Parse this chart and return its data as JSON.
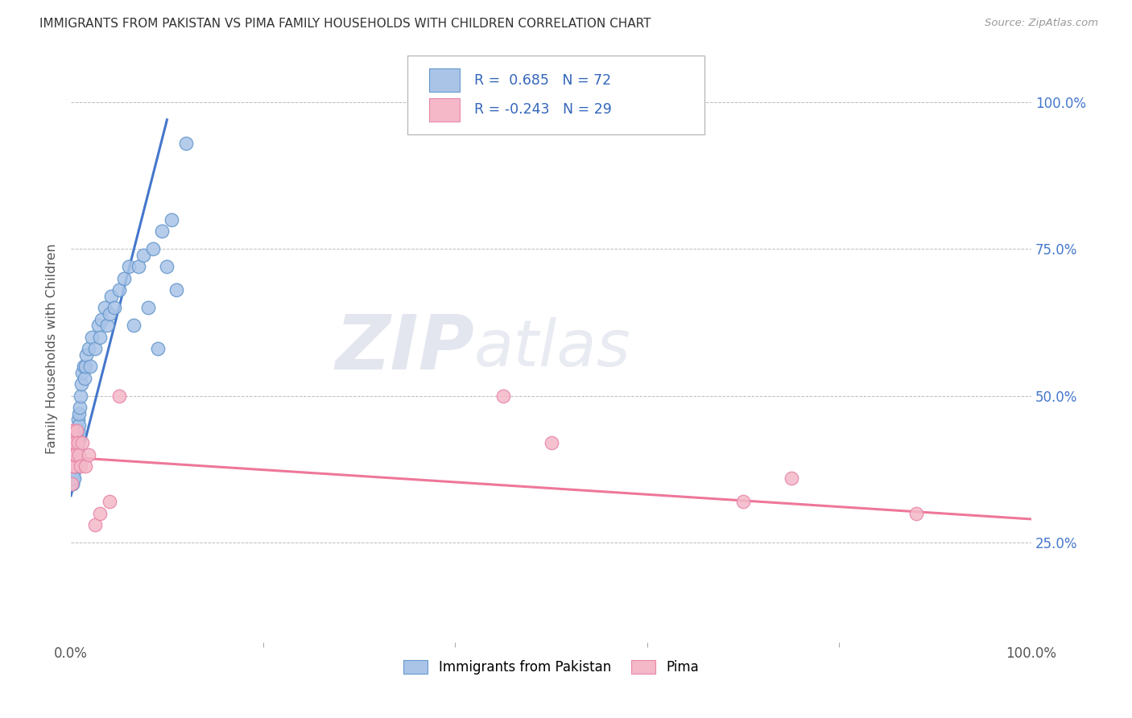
{
  "title": "IMMIGRANTS FROM PAKISTAN VS PIMA FAMILY HOUSEHOLDS WITH CHILDREN CORRELATION CHART",
  "source": "Source: ZipAtlas.com",
  "ylabel": "Family Households with Children",
  "y_ticks": [
    "25.0%",
    "50.0%",
    "75.0%",
    "100.0%"
  ],
  "y_tick_vals": [
    0.25,
    0.5,
    0.75,
    1.0
  ],
  "x_ticks": [
    "0.0%",
    "100.0%"
  ],
  "x_tick_vals": [
    0.0,
    1.0
  ],
  "x_range": [
    0.0,
    1.0
  ],
  "y_range": [
    0.08,
    1.08
  ],
  "legend_label1": "Immigrants from Pakistan",
  "legend_label2": "Pima",
  "R1": 0.685,
  "N1": 72,
  "R2": -0.243,
  "N2": 29,
  "blue_fill": "#aac4e8",
  "pink_fill": "#f4b8c8",
  "blue_edge": "#6699cc",
  "pink_edge": "#e888aa",
  "line_blue": "#4477cc",
  "line_pink": "#ee7799",
  "watermark_zip": "ZIP",
  "watermark_atlas": "atlas",
  "blue_line_x0": 0.0,
  "blue_line_y0": 0.33,
  "blue_line_x1": 0.1,
  "blue_line_y1": 0.97,
  "pink_line_x0": 0.0,
  "pink_line_y0": 0.395,
  "pink_line_x1": 1.0,
  "pink_line_y1": 0.29,
  "blue_scatter_x": [
    0.0005,
    0.0006,
    0.0007,
    0.0008,
    0.0009,
    0.001,
    0.001,
    0.0012,
    0.0013,
    0.0014,
    0.0015,
    0.0016,
    0.0017,
    0.0018,
    0.002,
    0.002,
    0.002,
    0.0022,
    0.0023,
    0.0025,
    0.003,
    0.003,
    0.003,
    0.003,
    0.0035,
    0.004,
    0.004,
    0.004,
    0.0045,
    0.005,
    0.005,
    0.005,
    0.006,
    0.006,
    0.007,
    0.007,
    0.008,
    0.008,
    0.009,
    0.01,
    0.011,
    0.012,
    0.013,
    0.014,
    0.015,
    0.016,
    0.018,
    0.02,
    0.022,
    0.025,
    0.028,
    0.03,
    0.032,
    0.035,
    0.038,
    0.04,
    0.042,
    0.045,
    0.05,
    0.055,
    0.06,
    0.065,
    0.07,
    0.075,
    0.08,
    0.085,
    0.09,
    0.095,
    0.1,
    0.105,
    0.11,
    0.12
  ],
  "blue_scatter_y": [
    0.36,
    0.38,
    0.35,
    0.37,
    0.39,
    0.36,
    0.38,
    0.37,
    0.35,
    0.39,
    0.38,
    0.36,
    0.37,
    0.35,
    0.37,
    0.38,
    0.4,
    0.36,
    0.38,
    0.37,
    0.38,
    0.36,
    0.39,
    0.41,
    0.4,
    0.38,
    0.4,
    0.42,
    0.43,
    0.41,
    0.38,
    0.4,
    0.43,
    0.42,
    0.44,
    0.46,
    0.45,
    0.47,
    0.48,
    0.5,
    0.52,
    0.54,
    0.55,
    0.53,
    0.55,
    0.57,
    0.58,
    0.55,
    0.6,
    0.58,
    0.62,
    0.6,
    0.63,
    0.65,
    0.62,
    0.64,
    0.67,
    0.65,
    0.68,
    0.7,
    0.72,
    0.62,
    0.72,
    0.74,
    0.65,
    0.75,
    0.58,
    0.78,
    0.72,
    0.8,
    0.68,
    0.93
  ],
  "pink_scatter_x": [
    0.0006,
    0.0007,
    0.0009,
    0.001,
    0.001,
    0.0013,
    0.0015,
    0.002,
    0.002,
    0.003,
    0.003,
    0.004,
    0.005,
    0.006,
    0.007,
    0.008,
    0.01,
    0.012,
    0.015,
    0.018,
    0.025,
    0.03,
    0.04,
    0.05,
    0.45,
    0.5,
    0.7,
    0.75,
    0.88
  ],
  "pink_scatter_y": [
    0.35,
    0.4,
    0.42,
    0.38,
    0.44,
    0.4,
    0.44,
    0.38,
    0.42,
    0.38,
    0.4,
    0.42,
    0.4,
    0.44,
    0.42,
    0.4,
    0.38,
    0.42,
    0.38,
    0.4,
    0.28,
    0.3,
    0.32,
    0.5,
    0.5,
    0.42,
    0.32,
    0.36,
    0.3
  ]
}
